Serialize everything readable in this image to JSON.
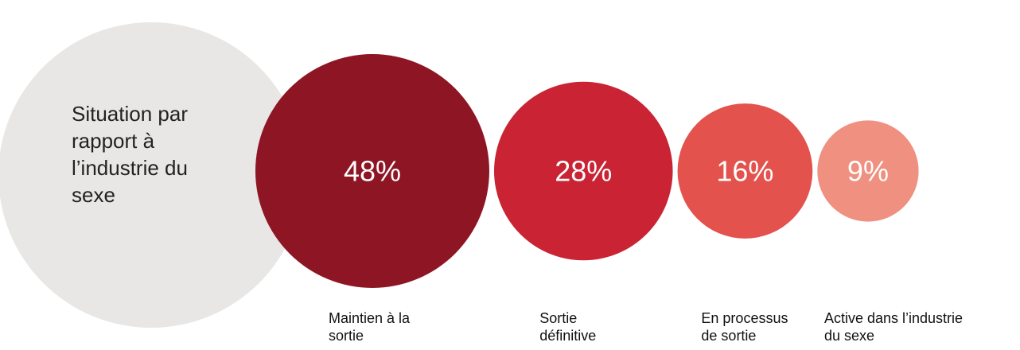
{
  "chart_data": {
    "type": "bubble",
    "title": "Situation par rapport à l’industrie du sexe",
    "categories": [
      "Maintien à la sortie",
      "Sortie définitive",
      "En processus de sortie",
      "Active dans l’industrie du sexe"
    ],
    "values": [
      48,
      28,
      16,
      9
    ],
    "value_labels": [
      "48%",
      "28%",
      "16%",
      "9%"
    ],
    "colors": [
      "#8e1624",
      "#c92334",
      "#e3524c",
      "#ef9080"
    ]
  }
}
